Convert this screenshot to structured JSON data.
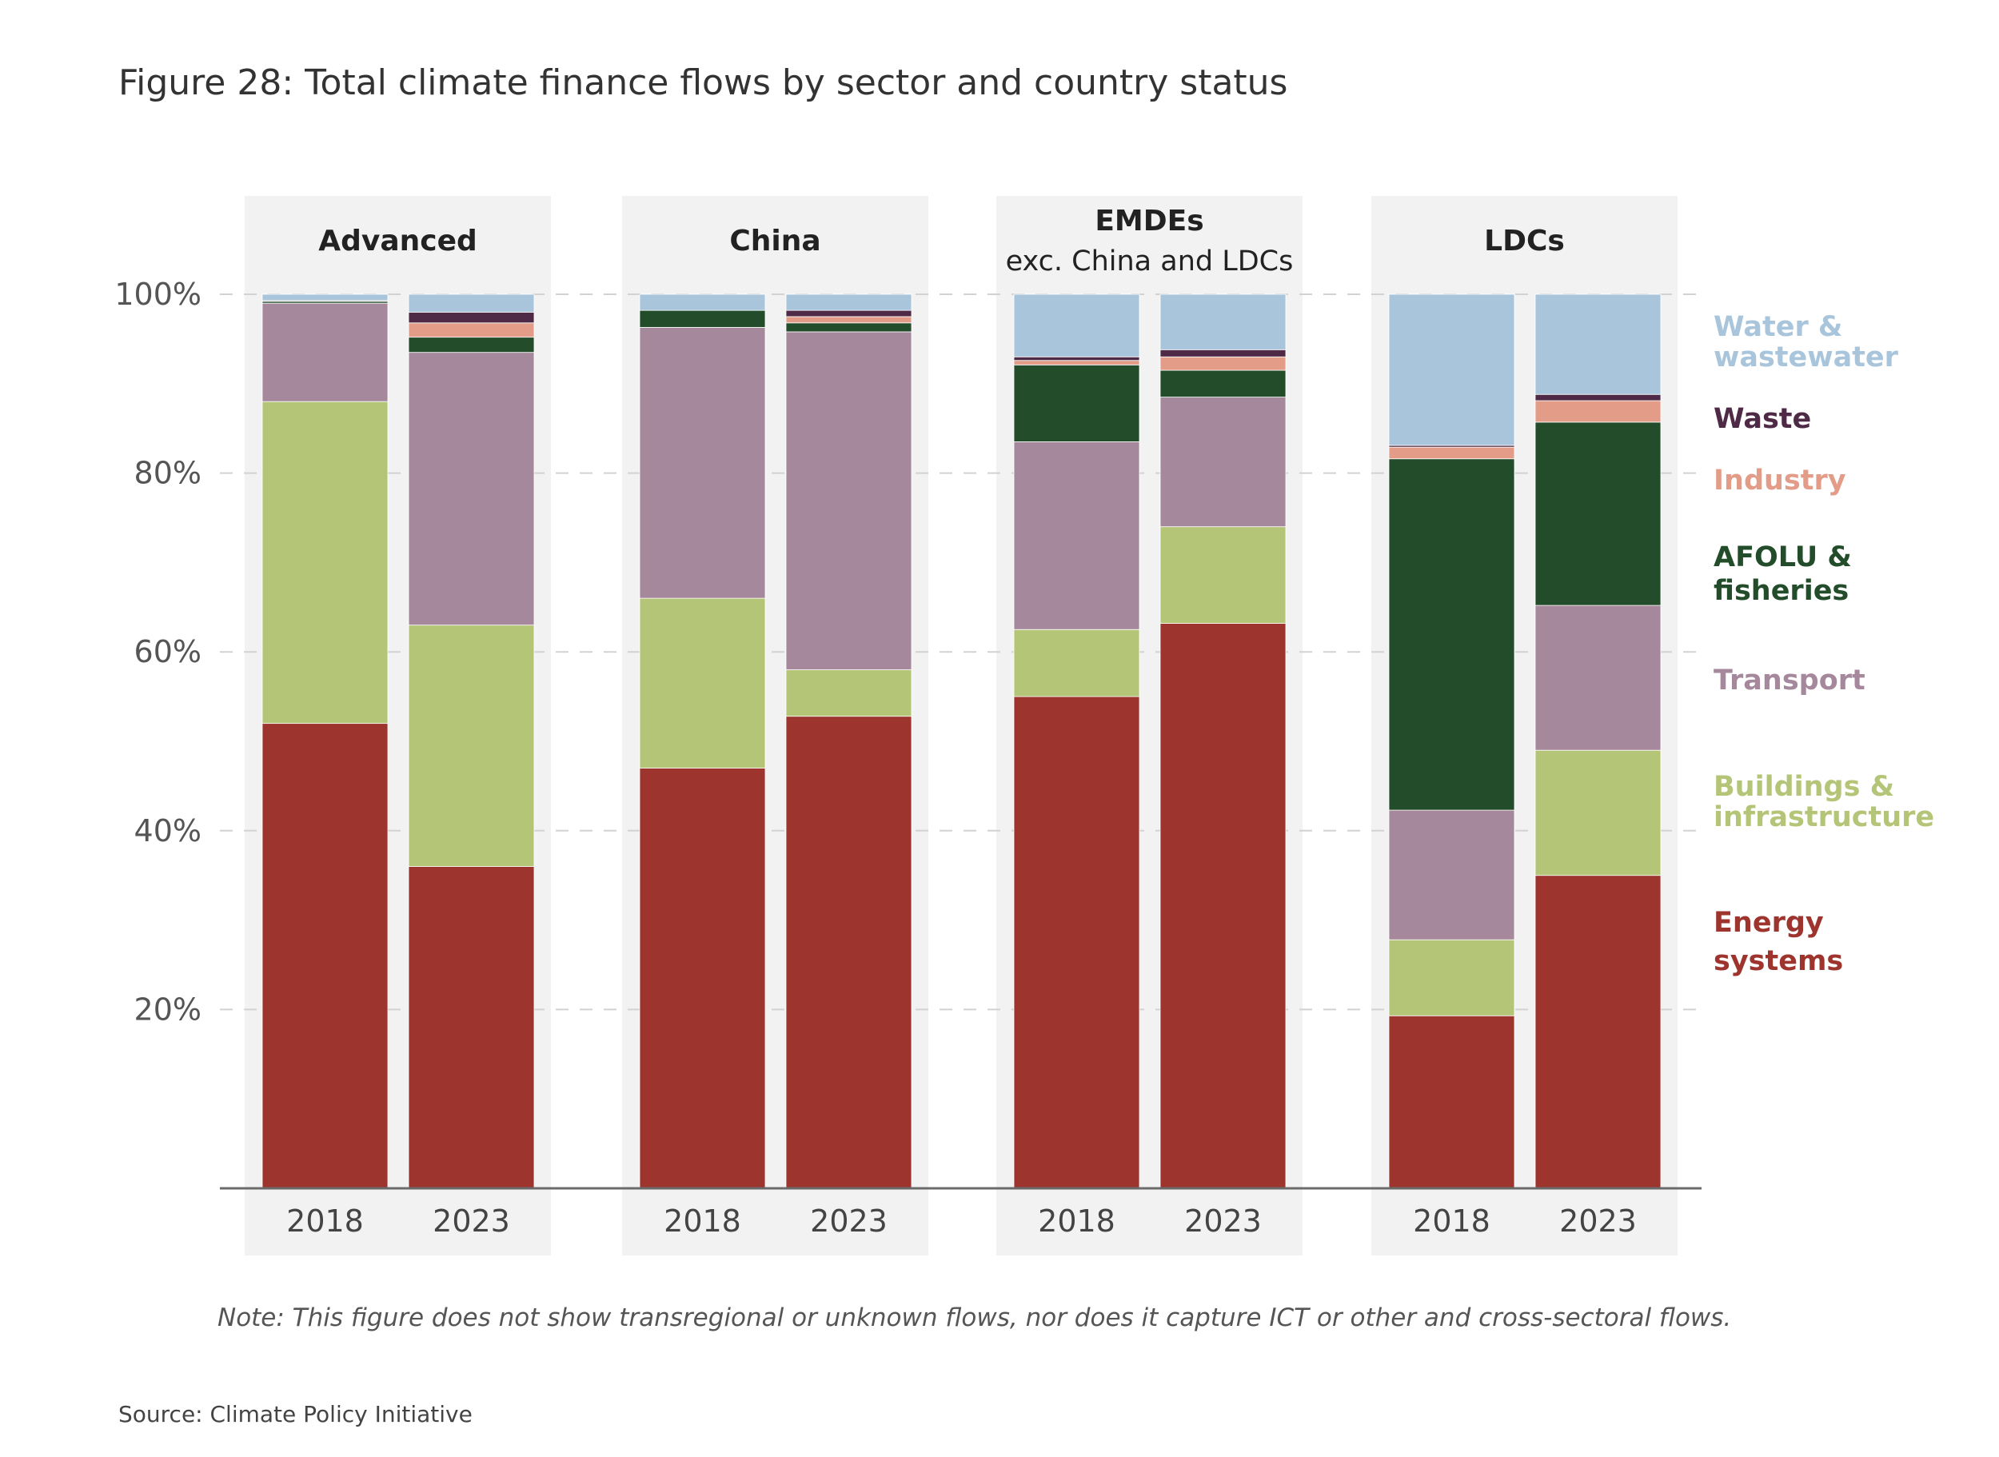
{
  "figure": {
    "title": "Figure 28: Total climate finance flows by sector and country status",
    "note": "Note: This figure does not show transregional or unknown flows, nor does it capture ICT or other and cross-sectoral flows.",
    "source": "Source: Climate Policy Initiative"
  },
  "chart_data": {
    "type": "bar",
    "stacked": true,
    "title": "Figure 28: Total climate finance flows by sector and country status",
    "ylabel": "",
    "ylim": [
      0,
      100
    ],
    "yticks": [
      20,
      40,
      60,
      80,
      100
    ],
    "ytick_labels": [
      "20%",
      "40%",
      "60%",
      "80%",
      "100%"
    ],
    "grid": "dashed horizontal",
    "legend_position": "right",
    "series": [
      {
        "name": "Energy systems",
        "color": "#9e342e"
      },
      {
        "name": "Buildings & infrastructure",
        "color": "#b5c577"
      },
      {
        "name": "Transport",
        "color": "#a6889d"
      },
      {
        "name": "AFOLU & fisheries",
        "color": "#224c2a"
      },
      {
        "name": "Industry",
        "color": "#e29c88"
      },
      {
        "name": "Waste",
        "color": "#4f2a47"
      },
      {
        "name": "Water & wastewater",
        "color": "#a8c5dc"
      }
    ],
    "legend": [
      {
        "label_lines": [
          "Water &",
          "wastewater"
        ],
        "color": "#a8c5dc"
      },
      {
        "label_lines": [
          "Waste"
        ],
        "color": "#4f2a47"
      },
      {
        "label_lines": [
          "Industry"
        ],
        "color": "#e29c88"
      },
      {
        "label_lines": [
          "AFOLU &",
          "fisheries"
        ],
        "color": "#224c2a"
      },
      {
        "label_lines": [
          "Transport"
        ],
        "color": "#a6889d"
      },
      {
        "label_lines": [
          "Buildings &",
          "infrastructure"
        ],
        "color": "#b5c577"
      },
      {
        "label_lines": [
          "Energy",
          "systems"
        ],
        "color": "#9e342e"
      }
    ],
    "groups": [
      {
        "title": "Advanced",
        "subtitle": "",
        "bars": [
          {
            "year": "2018",
            "values": [
              52,
              36,
              11,
              0.2,
              0,
              0.1,
              0.7
            ]
          },
          {
            "year": "2023",
            "values": [
              36,
              27,
              30.5,
              1.7,
              1.6,
              1.2,
              2
            ]
          }
        ]
      },
      {
        "title": "China",
        "subtitle": "",
        "bars": [
          {
            "year": "2018",
            "values": [
              47,
              19,
              30.3,
              1.9,
              0,
              0,
              1.8
            ]
          },
          {
            "year": "2023",
            "values": [
              52.8,
              5.2,
              37.8,
              1,
              0.7,
              0.7,
              1.8
            ]
          }
        ]
      },
      {
        "title": "EMDEs",
        "subtitle": "exc. China and LDCs",
        "bars": [
          {
            "year": "2018",
            "values": [
              55,
              7.5,
              21,
              8.6,
              0.5,
              0.4,
              7
            ]
          },
          {
            "year": "2023",
            "values": [
              63.2,
              10.8,
              14.5,
              3,
              1.5,
              0.8,
              6.2
            ]
          }
        ]
      },
      {
        "title": "LDCs",
        "subtitle": "",
        "bars": [
          {
            "year": "2018",
            "values": [
              19.3,
              8.5,
              14.5,
              39.3,
              1.3,
              0.2,
              16.9
            ]
          },
          {
            "year": "2023",
            "values": [
              35,
              14,
              16.2,
              20.5,
              2.4,
              0.7,
              11.2
            ]
          }
        ]
      }
    ]
  }
}
